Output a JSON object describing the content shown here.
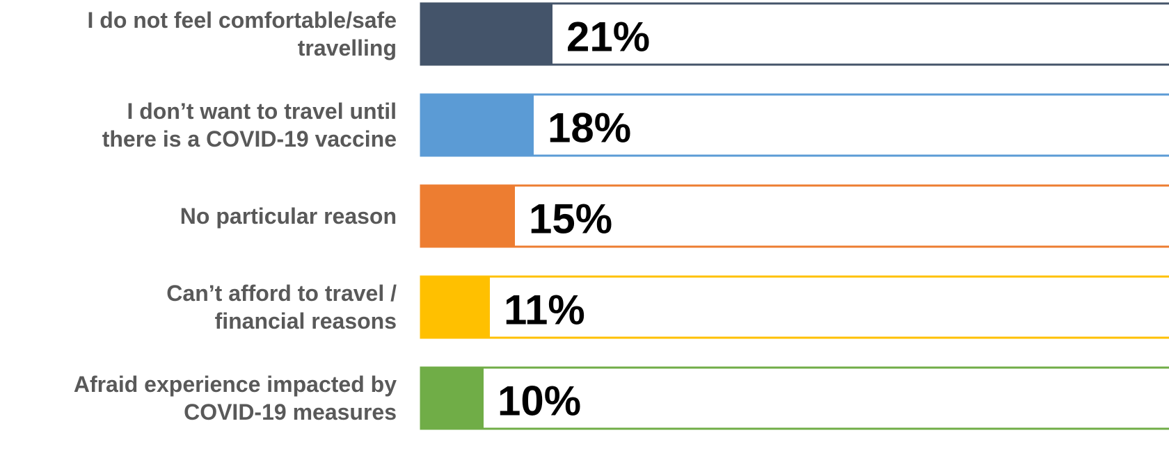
{
  "chart_data": {
    "type": "bar",
    "orientation": "horizontal",
    "categories": [
      "I do not feel comfortable/safe\ntravelling",
      "I don’t want to travel until\nthere is a COVID-19 vaccine",
      "No particular reason",
      "Can’t afford to travel /\nfinancial reasons",
      "Afraid experience impacted by\nCOVID-19 measures"
    ],
    "values": [
      21,
      18,
      15,
      11,
      10
    ],
    "value_labels": [
      "21%",
      "18%",
      "15%",
      "11%",
      "10%"
    ],
    "colors": [
      "#44546a",
      "#5b9bd5",
      "#ed7d31",
      "#ffc000",
      "#70ad47"
    ]
  }
}
